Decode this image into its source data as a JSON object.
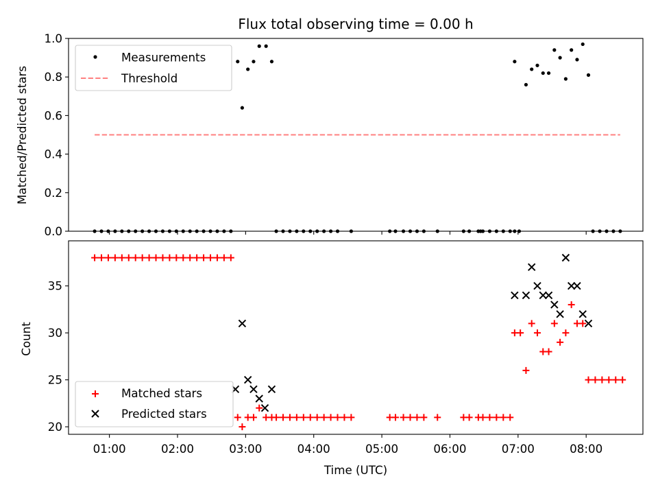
{
  "chart_data": [
    {
      "type": "scatter",
      "title": "Flux total observing time = 0.00 h",
      "xlabel": "",
      "ylabel": "Matched/Predicted stars",
      "ylim": [
        0.0,
        1.0
      ],
      "yticks": [
        "0.0",
        "0.2",
        "0.4",
        "0.6",
        "0.8",
        "1.0"
      ],
      "xlim": [
        "00:24",
        "08:50"
      ],
      "grid": false,
      "legend_position": "upper-left",
      "series": [
        {
          "name": "Measurements",
          "kind": "points",
          "color": "#000000",
          "points": [
            [
              "00:47",
              0
            ],
            [
              "00:53",
              0
            ],
            [
              "00:59",
              0
            ],
            [
              "01:05",
              0
            ],
            [
              "01:11",
              0
            ],
            [
              "01:17",
              0
            ],
            [
              "01:23",
              0
            ],
            [
              "01:29",
              0
            ],
            [
              "01:35",
              0
            ],
            [
              "01:41",
              0
            ],
            [
              "01:47",
              0
            ],
            [
              "01:53",
              0
            ],
            [
              "01:59",
              0
            ],
            [
              "02:05",
              0
            ],
            [
              "02:11",
              0
            ],
            [
              "02:17",
              0
            ],
            [
              "02:23",
              0
            ],
            [
              "02:29",
              0
            ],
            [
              "02:35",
              0
            ],
            [
              "02:41",
              0
            ],
            [
              "02:47",
              0
            ],
            [
              "02:53",
              0.88
            ],
            [
              "02:57",
              0.64
            ],
            [
              "03:02",
              0.84
            ],
            [
              "03:07",
              0.88
            ],
            [
              "03:12",
              0.96
            ],
            [
              "03:18",
              0.96
            ],
            [
              "03:23",
              0.88
            ],
            [
              "03:27",
              0
            ],
            [
              "03:33",
              0
            ],
            [
              "03:39",
              0
            ],
            [
              "03:45",
              0
            ],
            [
              "03:51",
              0
            ],
            [
              "03:57",
              0
            ],
            [
              "04:03",
              0
            ],
            [
              "04:09",
              0
            ],
            [
              "04:15",
              0
            ],
            [
              "04:21",
              0
            ],
            [
              "04:33",
              0
            ],
            [
              "05:07",
              0
            ],
            [
              "05:12",
              0
            ],
            [
              "05:19",
              0
            ],
            [
              "05:25",
              0
            ],
            [
              "05:31",
              0
            ],
            [
              "05:37",
              0
            ],
            [
              "05:49",
              0
            ],
            [
              "06:12",
              0
            ],
            [
              "06:17",
              0
            ],
            [
              "06:25",
              0
            ],
            [
              "06:27",
              0
            ],
            [
              "06:29",
              0
            ],
            [
              "06:35",
              0
            ],
            [
              "06:41",
              0
            ],
            [
              "06:47",
              0
            ],
            [
              "06:53",
              0
            ],
            [
              "06:57",
              0
            ],
            [
              "07:01",
              0
            ],
            [
              "06:57",
              0.88
            ],
            [
              "07:07",
              0.76
            ],
            [
              "07:12",
              0.84
            ],
            [
              "07:17",
              0.86
            ],
            [
              "07:22",
              0.82
            ],
            [
              "07:27",
              0.82
            ],
            [
              "07:32",
              0.94
            ],
            [
              "07:37",
              0.9
            ],
            [
              "07:42",
              0.79
            ],
            [
              "07:47",
              0.94
            ],
            [
              "07:52",
              0.89
            ],
            [
              "07:57",
              0.97
            ],
            [
              "08:02",
              0.81
            ],
            [
              "08:06",
              0
            ],
            [
              "08:12",
              0
            ],
            [
              "08:18",
              0
            ],
            [
              "08:24",
              0
            ],
            [
              "08:30",
              0
            ]
          ]
        },
        {
          "name": "Threshold",
          "kind": "dashed-line",
          "color": "#ff8080",
          "points": [
            [
              "00:47",
              0.5
            ],
            [
              "08:30",
              0.5
            ]
          ]
        }
      ]
    },
    {
      "type": "scatter",
      "title": "",
      "xlabel": "Time (UTC)",
      "ylabel": "Count",
      "ylim": [
        19.2,
        39.8
      ],
      "yticks": [
        "20",
        "25",
        "30",
        "35"
      ],
      "xticks": [
        "01:00",
        "02:00",
        "03:00",
        "04:00",
        "05:00",
        "06:00",
        "07:00",
        "08:00"
      ],
      "xlim": [
        "00:24",
        "08:50"
      ],
      "grid": false,
      "legend_position": "lower-left",
      "series": [
        {
          "name": "Matched stars",
          "kind": "plus",
          "color": "#ff0000",
          "points": [
            [
              "00:47",
              38
            ],
            [
              "00:53",
              38
            ],
            [
              "00:59",
              38
            ],
            [
              "01:05",
              38
            ],
            [
              "01:11",
              38
            ],
            [
              "01:17",
              38
            ],
            [
              "01:23",
              38
            ],
            [
              "01:29",
              38
            ],
            [
              "01:35",
              38
            ],
            [
              "01:41",
              38
            ],
            [
              "01:47",
              38
            ],
            [
              "01:53",
              38
            ],
            [
              "01:59",
              38
            ],
            [
              "02:05",
              38
            ],
            [
              "02:11",
              38
            ],
            [
              "02:17",
              38
            ],
            [
              "02:23",
              38
            ],
            [
              "02:29",
              38
            ],
            [
              "02:35",
              38
            ],
            [
              "02:41",
              38
            ],
            [
              "02:47",
              38
            ],
            [
              "02:53",
              21
            ],
            [
              "02:57",
              20
            ],
            [
              "03:02",
              21
            ],
            [
              "03:07",
              21
            ],
            [
              "03:12",
              22
            ],
            [
              "03:18",
              21
            ],
            [
              "03:23",
              21
            ],
            [
              "03:27",
              21
            ],
            [
              "03:33",
              21
            ],
            [
              "03:39",
              21
            ],
            [
              "03:45",
              21
            ],
            [
              "03:51",
              21
            ],
            [
              "03:57",
              21
            ],
            [
              "04:03",
              21
            ],
            [
              "04:09",
              21
            ],
            [
              "04:15",
              21
            ],
            [
              "04:21",
              21
            ],
            [
              "04:27",
              21
            ],
            [
              "04:33",
              21
            ],
            [
              "05:07",
              21
            ],
            [
              "05:12",
              21
            ],
            [
              "05:19",
              21
            ],
            [
              "05:25",
              21
            ],
            [
              "05:31",
              21
            ],
            [
              "05:37",
              21
            ],
            [
              "05:49",
              21
            ],
            [
              "06:12",
              21
            ],
            [
              "06:17",
              21
            ],
            [
              "06:25",
              21
            ],
            [
              "06:29",
              21
            ],
            [
              "06:35",
              21
            ],
            [
              "06:41",
              21
            ],
            [
              "06:47",
              21
            ],
            [
              "06:53",
              21
            ],
            [
              "06:57",
              30
            ],
            [
              "07:02",
              30
            ],
            [
              "07:07",
              26
            ],
            [
              "07:12",
              31
            ],
            [
              "07:17",
              30
            ],
            [
              "07:22",
              28
            ],
            [
              "07:27",
              28
            ],
            [
              "07:32",
              31
            ],
            [
              "07:37",
              29
            ],
            [
              "07:42",
              30
            ],
            [
              "07:47",
              33
            ],
            [
              "07:52",
              31
            ],
            [
              "07:57",
              31
            ],
            [
              "08:02",
              25
            ],
            [
              "08:08",
              25
            ],
            [
              "08:14",
              25
            ],
            [
              "08:20",
              25
            ],
            [
              "08:26",
              25
            ],
            [
              "08:32",
              25
            ]
          ]
        },
        {
          "name": "Predicted stars",
          "kind": "x",
          "color": "#000000",
          "points": [
            [
              "02:51",
              24
            ],
            [
              "02:57",
              31
            ],
            [
              "03:02",
              25
            ],
            [
              "03:07",
              24
            ],
            [
              "03:12",
              23
            ],
            [
              "03:17",
              22
            ],
            [
              "03:23",
              24
            ],
            [
              "06:57",
              34
            ],
            [
              "07:07",
              34
            ],
            [
              "07:12",
              37
            ],
            [
              "07:17",
              35
            ],
            [
              "07:22",
              34
            ],
            [
              "07:27",
              34
            ],
            [
              "07:32",
              33
            ],
            [
              "07:37",
              32
            ],
            [
              "07:42",
              38
            ],
            [
              "07:47",
              35
            ],
            [
              "07:52",
              35
            ],
            [
              "07:57",
              32
            ],
            [
              "08:02",
              31
            ]
          ]
        }
      ]
    }
  ]
}
